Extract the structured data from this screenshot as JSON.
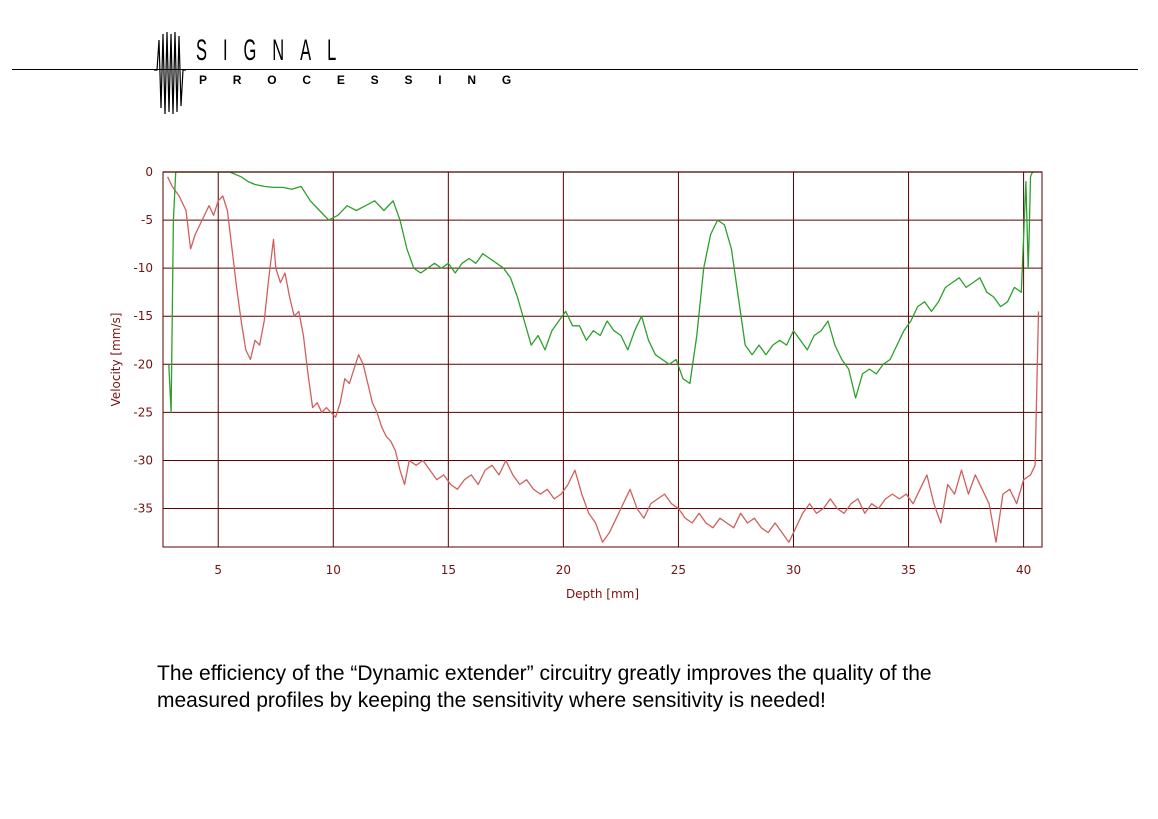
{
  "logo": {
    "word1": "SIGNAL",
    "word2": "PROCESSING",
    "icon": "vertical-wave-icon"
  },
  "chart_data": {
    "type": "line",
    "xlabel": "Depth [mm]",
    "ylabel": "Velocity [mm/s]",
    "xlim": [
      2.6,
      40.8
    ],
    "ylim": [
      -39,
      0
    ],
    "xticks": [
      5,
      10,
      15,
      20,
      25,
      30,
      35,
      40
    ],
    "yticks": [
      0,
      -5,
      -10,
      -15,
      -20,
      -25,
      -30,
      -35
    ],
    "grid": true,
    "colors": {
      "grid": "#5a0000",
      "tick_labels": "#7a1010",
      "series_red": "#d0605f",
      "series_green": "#2ca02c"
    },
    "series": [
      {
        "color": "#d0605f",
        "x": [
          2.8,
          3.0,
          3.3,
          3.6,
          3.8,
          4.0,
          4.3,
          4.6,
          4.8,
          5.0,
          5.2,
          5.4,
          5.6,
          5.8,
          6.0,
          6.2,
          6.4,
          6.6,
          6.8,
          7.0,
          7.2,
          7.4,
          7.5,
          7.7,
          7.9,
          8.1,
          8.3,
          8.5,
          8.7,
          8.9,
          9.1,
          9.3,
          9.5,
          9.7,
          9.9,
          10.1,
          10.3,
          10.5,
          10.7,
          10.9,
          11.1,
          11.3,
          11.5,
          11.7,
          11.9,
          12.1,
          12.3,
          12.5,
          12.7,
          12.9,
          13.1,
          13.3,
          13.6,
          13.9,
          14.2,
          14.5,
          14.8,
          15.1,
          15.4,
          15.7,
          16.0,
          16.3,
          16.6,
          16.9,
          17.2,
          17.5,
          17.8,
          18.1,
          18.4,
          18.7,
          19.0,
          19.3,
          19.6,
          19.9,
          20.2,
          20.5,
          20.8,
          21.1,
          21.4,
          21.7,
          22.0,
          22.3,
          22.6,
          22.9,
          23.2,
          23.5,
          23.8,
          24.1,
          24.4,
          24.7,
          25.0,
          25.3,
          25.6,
          25.9,
          26.2,
          26.5,
          26.8,
          27.1,
          27.4,
          27.7,
          28.0,
          28.3,
          28.6,
          28.9,
          29.2,
          29.5,
          29.8,
          30.1,
          30.4,
          30.7,
          31.0,
          31.3,
          31.6,
          31.9,
          32.2,
          32.5,
          32.8,
          33.1,
          33.4,
          33.7,
          34.0,
          34.3,
          34.6,
          34.9,
          35.2,
          35.5,
          35.8,
          36.1,
          36.4,
          36.7,
          37.0,
          37.3,
          37.6,
          37.9,
          38.2,
          38.5,
          38.8,
          39.1,
          39.4,
          39.7,
          40.0,
          40.3,
          40.5,
          40.65
        ],
        "y": [
          -0.5,
          -1.5,
          -2.5,
          -4.0,
          -8.0,
          -6.5,
          -5.0,
          -3.5,
          -4.5,
          -3.0,
          -2.5,
          -4.0,
          -8.0,
          -12.0,
          -15.5,
          -18.5,
          -19.5,
          -17.5,
          -18.0,
          -15.5,
          -11.0,
          -7.0,
          -10.0,
          -11.5,
          -10.5,
          -13.0,
          -15.0,
          -14.5,
          -17.0,
          -21.0,
          -24.5,
          -24.0,
          -25.0,
          -24.5,
          -25.0,
          -25.5,
          -24.0,
          -21.5,
          -22.0,
          -20.5,
          -19.0,
          -20.0,
          -22.0,
          -24.0,
          -25.0,
          -26.5,
          -27.5,
          -28.0,
          -29.0,
          -31.0,
          -32.5,
          -30.0,
          -30.5,
          -30.0,
          -31.0,
          -32.0,
          -31.5,
          -32.5,
          -33.0,
          -32.0,
          -31.5,
          -32.5,
          -31.0,
          -30.5,
          -31.5,
          -30.0,
          -31.5,
          -32.5,
          -32.0,
          -33.0,
          -33.5,
          -33.0,
          -34.0,
          -33.5,
          -32.5,
          -31.0,
          -33.5,
          -35.5,
          -36.5,
          -38.5,
          -37.5,
          -36.0,
          -34.5,
          -33.0,
          -35.0,
          -36.0,
          -34.5,
          -34.0,
          -33.5,
          -34.5,
          -35.0,
          -36.0,
          -36.5,
          -35.5,
          -36.5,
          -37.0,
          -36.0,
          -36.5,
          -37.0,
          -35.5,
          -36.5,
          -36.0,
          -37.0,
          -37.5,
          -36.5,
          -37.5,
          -38.5,
          -37.0,
          -35.5,
          -34.5,
          -35.5,
          -35.0,
          -34.0,
          -35.0,
          -35.5,
          -34.5,
          -34.0,
          -35.5,
          -34.5,
          -35.0,
          -34.0,
          -33.5,
          -34.0,
          -33.5,
          -34.5,
          -33.0,
          -31.5,
          -34.5,
          -36.5,
          -32.5,
          -33.5,
          -31.0,
          -33.5,
          -31.5,
          -33.0,
          -34.5,
          -38.5,
          -33.5,
          -33.0,
          -34.5,
          -32.0,
          -31.5,
          -30.5,
          -14.5
        ]
      },
      {
        "color": "#2ca02c",
        "x": [
          2.85,
          2.95,
          3.05,
          3.15,
          3.3,
          3.6,
          4.0,
          4.5,
          5.0,
          5.5,
          6.0,
          6.3,
          6.6,
          7.0,
          7.4,
          7.8,
          8.2,
          8.6,
          9.0,
          9.4,
          9.8,
          10.2,
          10.6,
          11.0,
          11.4,
          11.8,
          12.2,
          12.6,
          12.9,
          13.2,
          13.5,
          13.8,
          14.1,
          14.4,
          14.7,
          15.0,
          15.3,
          15.6,
          15.9,
          16.2,
          16.5,
          16.8,
          17.1,
          17.4,
          17.7,
          18.0,
          18.3,
          18.6,
          18.9,
          19.2,
          19.5,
          19.8,
          20.1,
          20.4,
          20.7,
          21.0,
          21.3,
          21.6,
          21.9,
          22.2,
          22.5,
          22.8,
          23.1,
          23.4,
          23.7,
          24.0,
          24.3,
          24.6,
          24.9,
          25.2,
          25.5,
          25.8,
          26.1,
          26.4,
          26.7,
          27.0,
          27.3,
          27.6,
          27.9,
          28.2,
          28.5,
          28.8,
          29.1,
          29.4,
          29.7,
          30.0,
          30.3,
          30.6,
          30.9,
          31.2,
          31.5,
          31.8,
          32.1,
          32.4,
          32.7,
          33.0,
          33.3,
          33.6,
          33.9,
          34.2,
          34.5,
          34.8,
          35.1,
          35.4,
          35.7,
          36.0,
          36.3,
          36.6,
          36.9,
          37.2,
          37.5,
          37.8,
          38.1,
          38.4,
          38.7,
          39.0,
          39.3,
          39.6,
          39.9,
          40.1,
          40.2,
          40.25,
          40.3,
          40.35,
          40.4,
          40.5
        ],
        "y": [
          -20.0,
          -25.0,
          -5.0,
          0.0,
          0.0,
          0.0,
          0.0,
          0.0,
          0.0,
          0.0,
          -0.5,
          -1.0,
          -1.3,
          -1.5,
          -1.6,
          -1.6,
          -1.8,
          -1.5,
          -3.0,
          -4.0,
          -5.0,
          -4.5,
          -3.5,
          -4.0,
          -3.5,
          -3.0,
          -4.0,
          -3.0,
          -5.0,
          -8.0,
          -10.0,
          -10.5,
          -10.0,
          -9.5,
          -10.0,
          -9.5,
          -10.5,
          -9.5,
          -9.0,
          -9.5,
          -8.5,
          -9.0,
          -9.5,
          -10.0,
          -11.0,
          -13.0,
          -15.5,
          -18.0,
          -17.0,
          -18.5,
          -16.5,
          -15.5,
          -14.5,
          -16.0,
          -16.0,
          -17.5,
          -16.5,
          -17.0,
          -15.5,
          -16.5,
          -17.0,
          -18.5,
          -16.5,
          -15.0,
          -17.5,
          -19.0,
          -19.5,
          -20.0,
          -19.5,
          -21.5,
          -22.0,
          -17.0,
          -10.0,
          -6.5,
          -5.0,
          -5.5,
          -8.0,
          -13.0,
          -18.0,
          -19.0,
          -18.0,
          -19.0,
          -18.0,
          -17.5,
          -18.0,
          -16.5,
          -17.5,
          -18.5,
          -17.0,
          -16.5,
          -15.5,
          -18.0,
          -19.5,
          -20.5,
          -23.5,
          -21.0,
          -20.5,
          -21.0,
          -20.0,
          -19.5,
          -18.0,
          -16.5,
          -15.5,
          -14.0,
          -13.5,
          -14.5,
          -13.5,
          -12.0,
          -11.5,
          -11.0,
          -12.0,
          -11.5,
          -11.0,
          -12.5,
          -13.0,
          -14.0,
          -13.5,
          -12.0,
          -12.5,
          -1.0,
          -10.0,
          -6.0,
          -0.5,
          -0.2,
          0.0,
          0.0
        ]
      }
    ]
  },
  "caption": "The efficiency of the “Dynamic extender” circuitry greatly improves the quality of the measured profiles by keeping the sensitivity where sensitivity is needed!"
}
